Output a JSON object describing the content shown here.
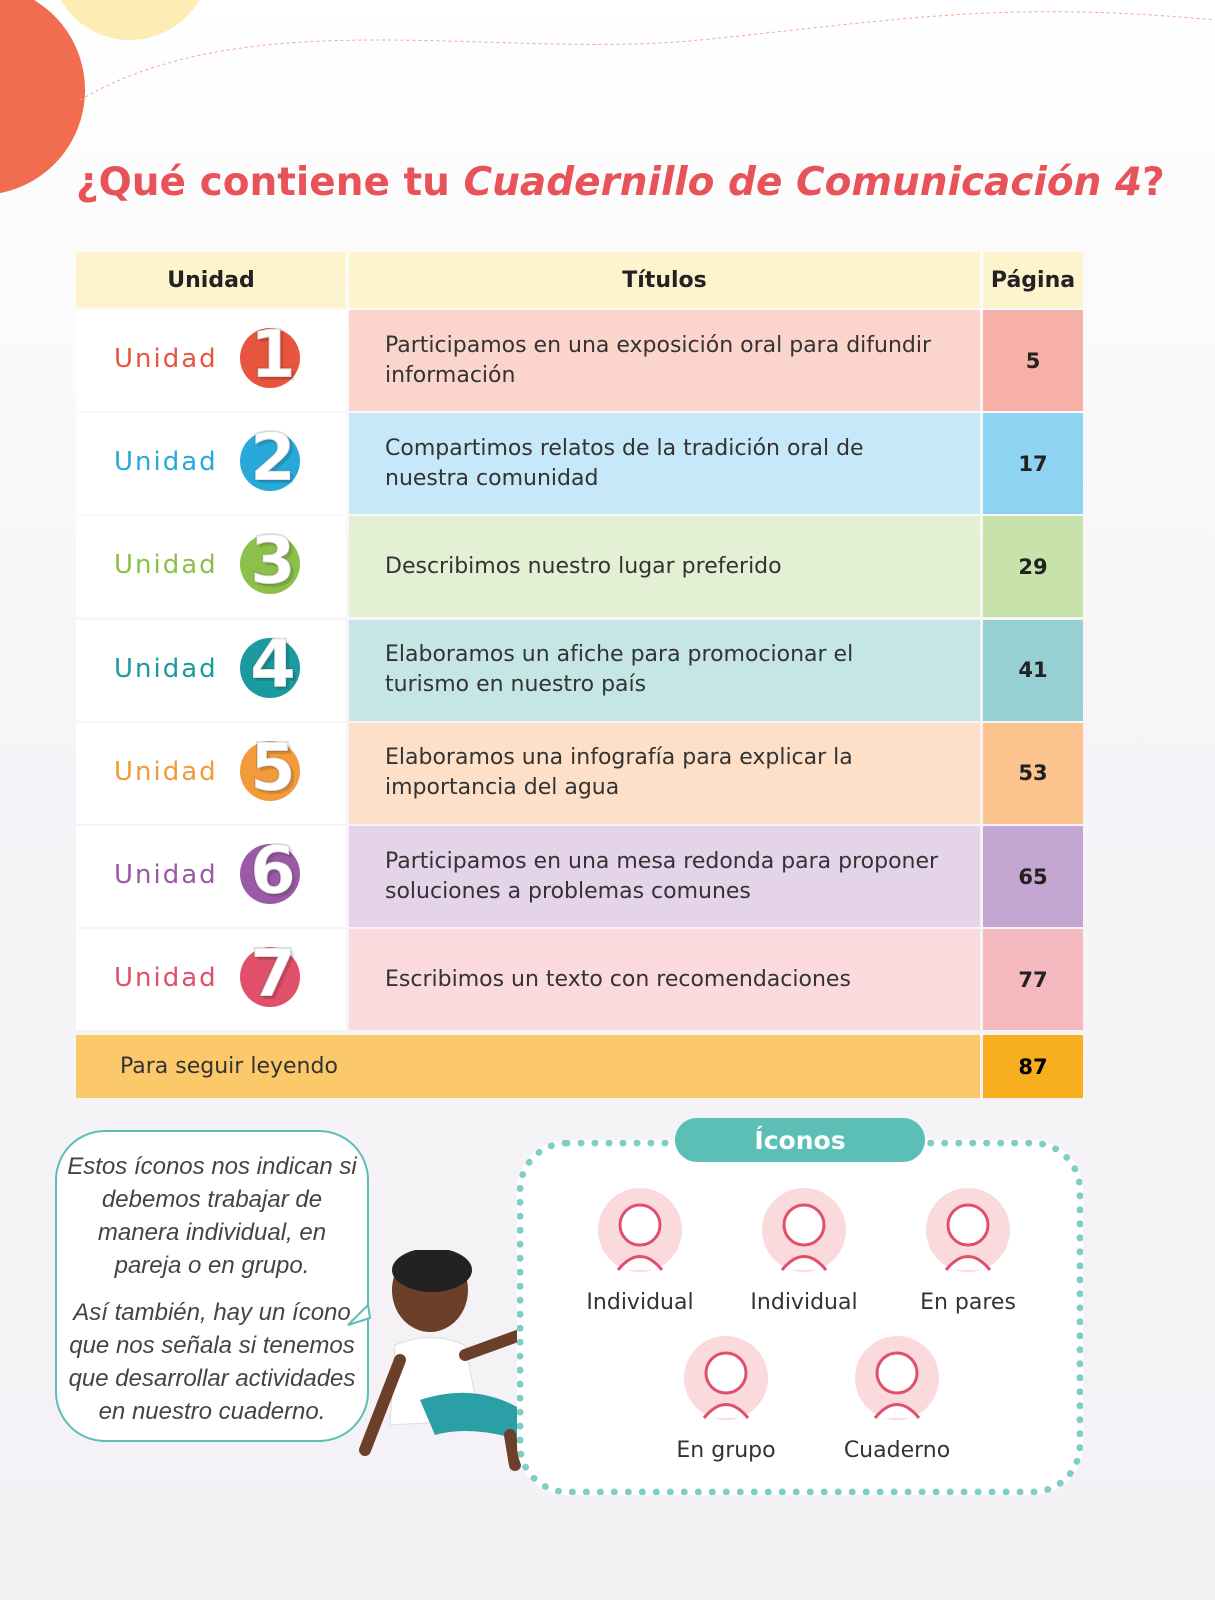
{
  "title": {
    "lead": "¿Qué contiene tu ",
    "italic": "Cuadernillo de Comunicación 4",
    "end": "?"
  },
  "table": {
    "headers": [
      "Unidad",
      "Títulos",
      "Página"
    ],
    "rows": [
      {
        "unit_label": "Unidad",
        "unit_number": 1,
        "title": "Participamos en una exposición oral para difundir información",
        "page": 5
      },
      {
        "unit_label": "Unidad",
        "unit_number": 2,
        "title": "Compartimos relatos de la tradición oral de nuestra comunidad",
        "page": 17
      },
      {
        "unit_label": "Unidad",
        "unit_number": 3,
        "title": "Describimos nuestro lugar preferido",
        "page": 29
      },
      {
        "unit_label": "Unidad",
        "unit_number": 4,
        "title": "Elaboramos un afiche para promocionar el turismo en nuestro país",
        "page": 41
      },
      {
        "unit_label": "Unidad",
        "unit_number": 5,
        "title": "Elaboramos una infografía para explicar la importancia del agua",
        "page": 53
      },
      {
        "unit_label": "Unidad",
        "unit_number": 6,
        "title": "Participamos en una mesa redonda para proponer soluciones a problemas comunes",
        "page": 65
      },
      {
        "unit_label": "Unidad",
        "unit_number": 7,
        "title": "Escribimos un texto con recomendaciones",
        "page": 77
      }
    ],
    "footer": {
      "label": "Para seguir leyendo",
      "page": 87
    }
  },
  "speech_bubble": {
    "paragraphs": [
      "Estos íconos nos indican si debemos trabajar de manera individual, en pareja o en grupo.",
      "Así también, hay un ícono que nos señala si tenemos que desarrollar actividades en nuestro cuaderno."
    ]
  },
  "icons": {
    "title": "Íconos",
    "items": [
      "Individual",
      "Individual",
      "En pares",
      "En grupo",
      "Cuaderno"
    ]
  }
}
